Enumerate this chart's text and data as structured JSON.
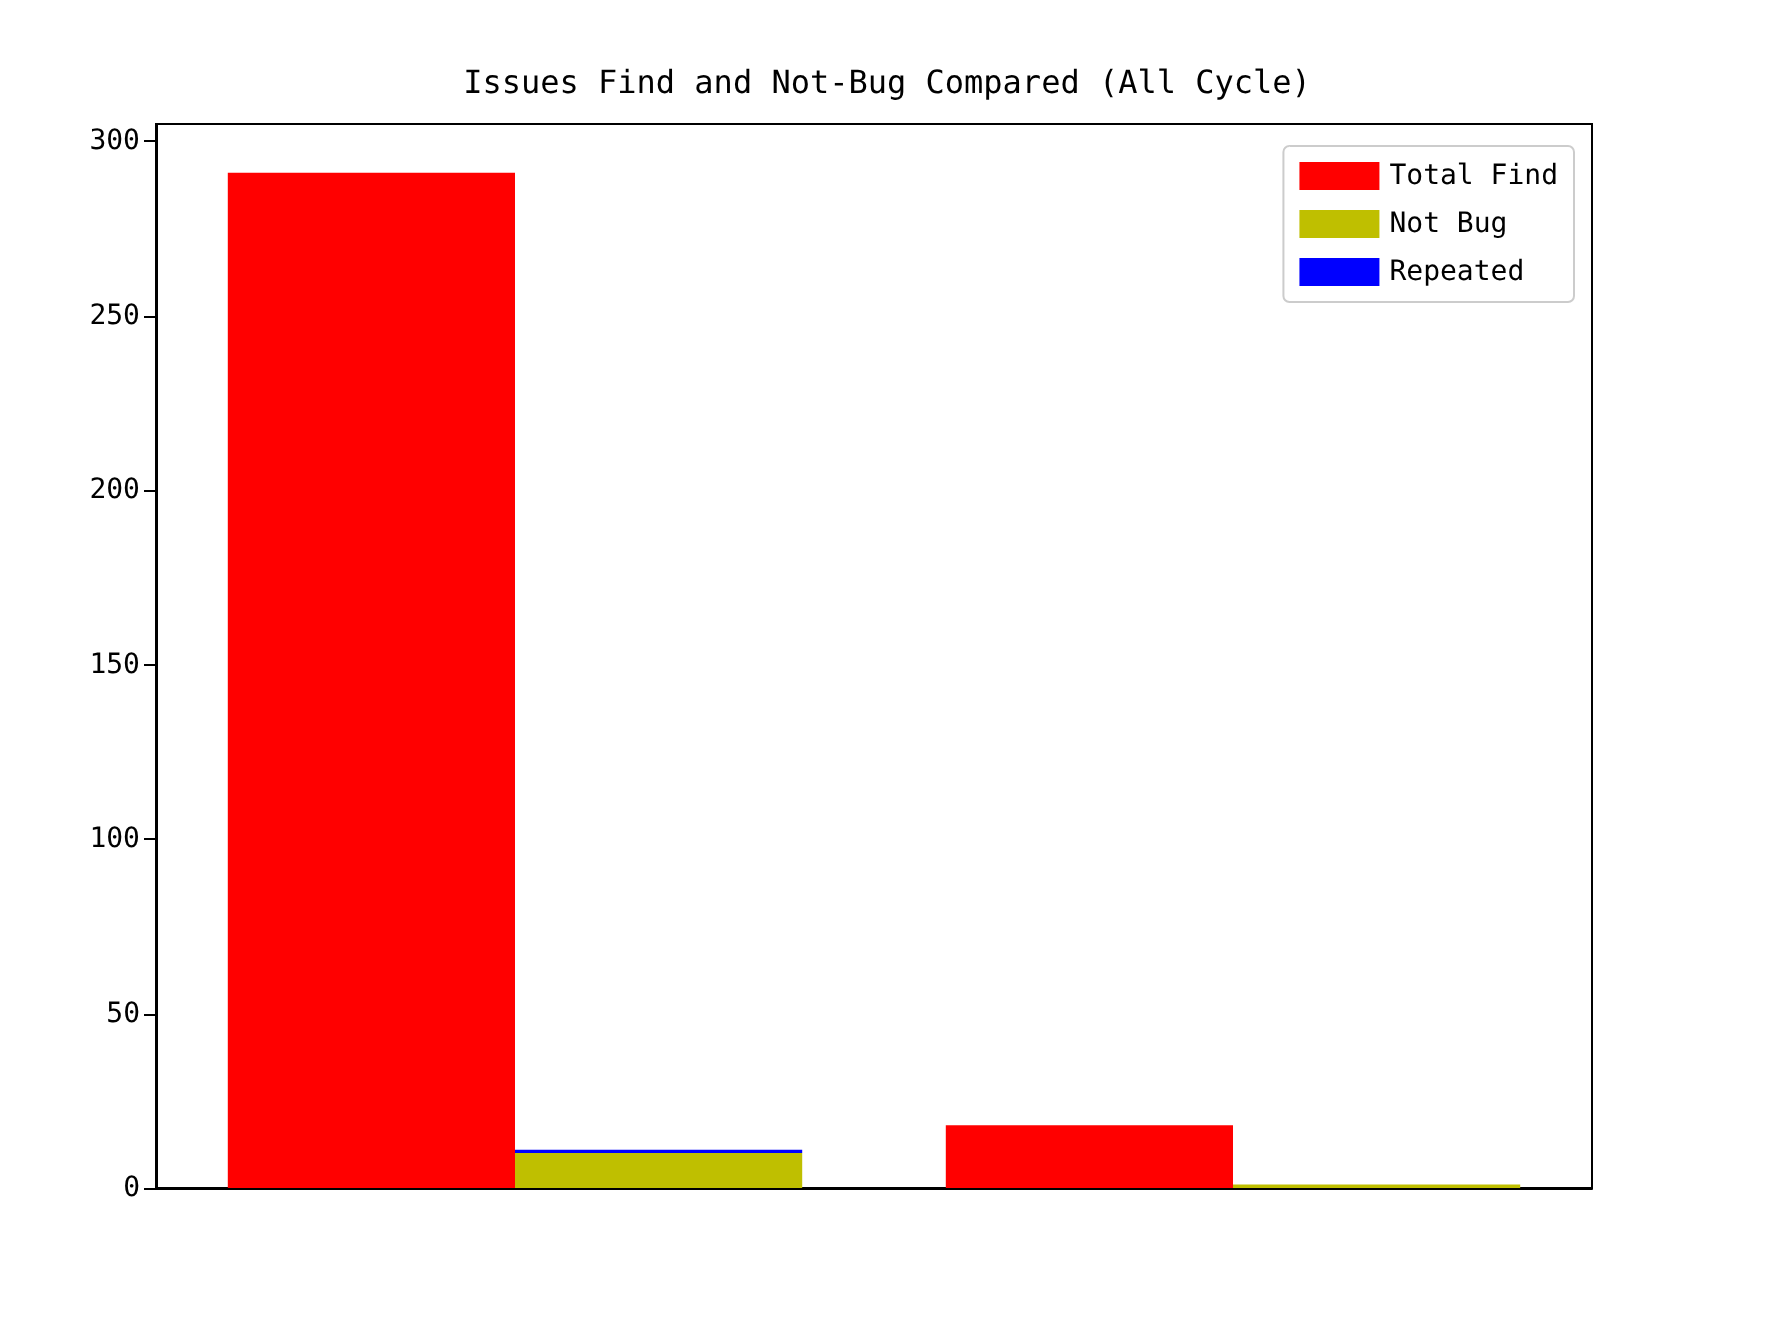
{
  "chart_data": {
    "type": "bar",
    "title": "Issues Find and Not-Bug Compared (All Cycle)",
    "categories": [
      null,
      null
    ],
    "series": [
      {
        "name": "Total Find",
        "color": "#ff0000",
        "values": [
          291,
          18
        ]
      },
      {
        "name": "Not Bug",
        "color": "#bfbf00",
        "values": [
          10,
          1
        ]
      },
      {
        "name": "Repeated",
        "color": "#0000ff",
        "values": [
          1,
          null
        ],
        "base": [
          10,
          null
        ]
      }
    ],
    "ylim": [
      0,
      305
    ],
    "yticks": [
      0,
      50,
      100,
      150,
      200,
      250,
      300
    ],
    "grid": false,
    "legend": "top right"
  }
}
